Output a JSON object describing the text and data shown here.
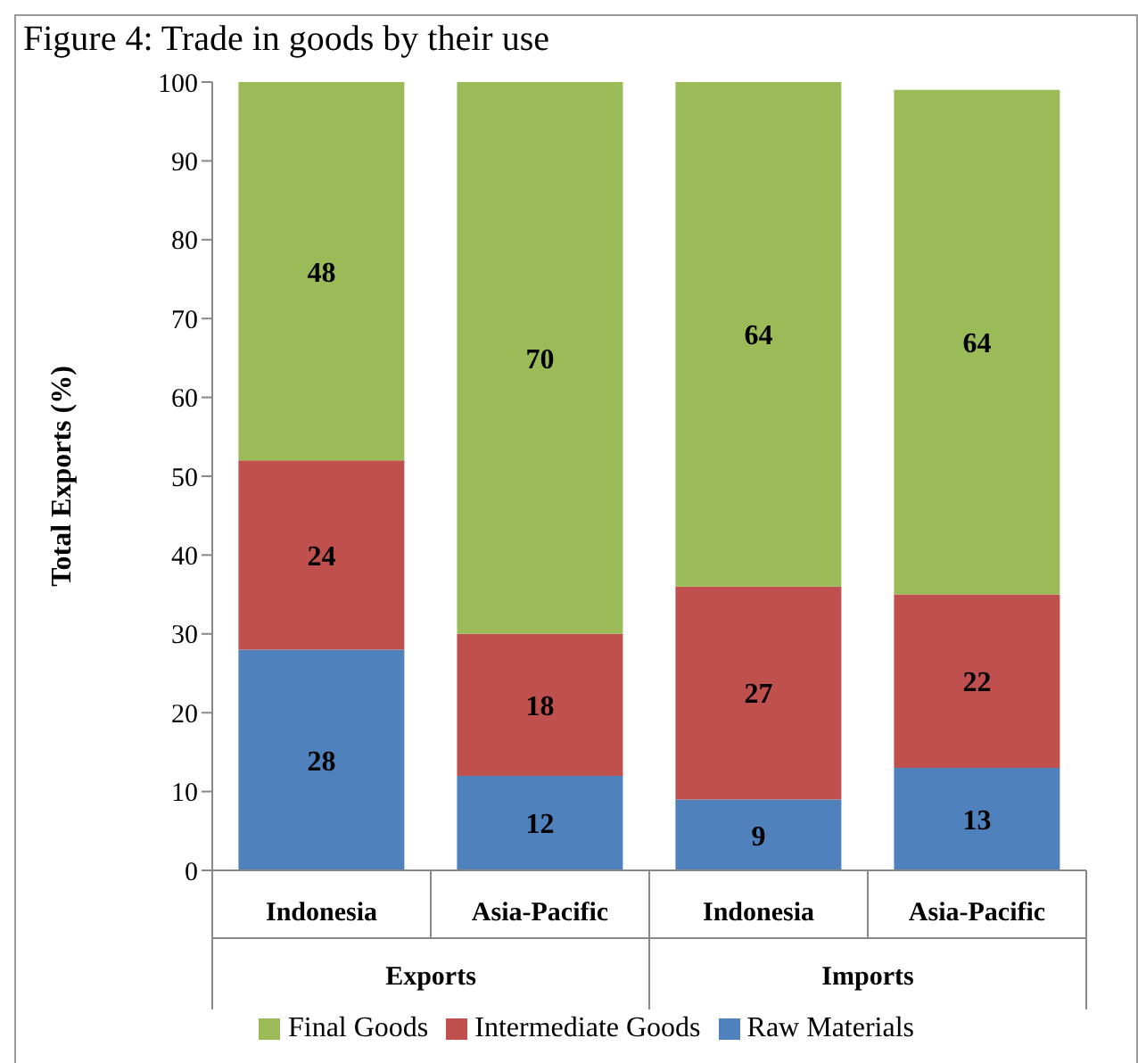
{
  "chart_data": {
    "type": "bar",
    "title": "Figure 4: Trade in goods by their use",
    "ylabel": "Total Exports (%)",
    "categories": [
      "Indonesia",
      "Asia-Pacific",
      "Indonesia",
      "Asia-Pacific"
    ],
    "annotations": [
      "Exports",
      "Imports"
    ],
    "series": [
      {
        "name": "Raw Materials",
        "color": "#4f81bd",
        "values": [
          28,
          12,
          9,
          13
        ]
      },
      {
        "name": "Intermediate Goods",
        "color": "#c0504d",
        "values": [
          24,
          18,
          27,
          22
        ]
      },
      {
        "name": "Final Goods",
        "color": "#9bbb59",
        "values": [
          48,
          70,
          64,
          64
        ]
      }
    ],
    "stacked": true,
    "data_labels": true,
    "ylim": [
      0,
      100
    ],
    "yticks": [
      0,
      10,
      20,
      30,
      40,
      50,
      60,
      70,
      80,
      90,
      100
    ],
    "grid": false,
    "legend": "bottom"
  }
}
